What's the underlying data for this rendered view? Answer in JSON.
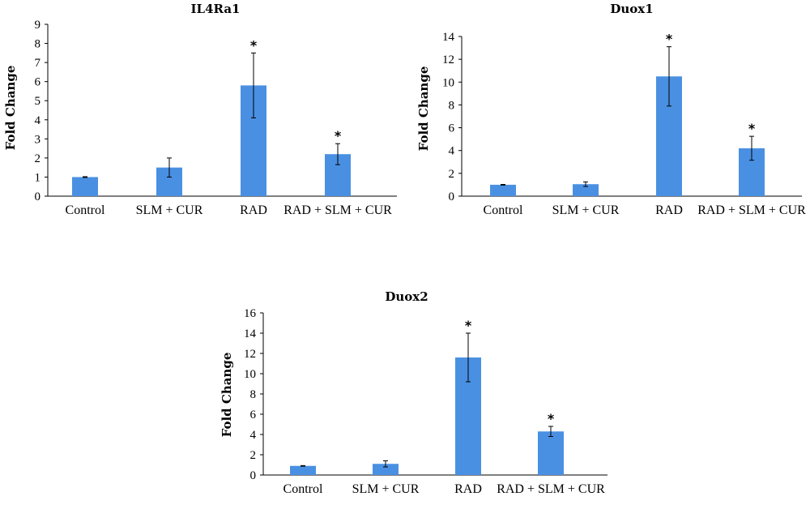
{
  "colors": {
    "bar": "#4a90e2",
    "axis": "#000000",
    "text": "#000000"
  },
  "chart_data": [
    {
      "type": "bar",
      "title": "IL4Ra1",
      "xlabel": "",
      "ylabel": "Fold Change",
      "ylim": [
        0,
        9
      ],
      "yticks": [
        0,
        1,
        2,
        3,
        4,
        5,
        6,
        7,
        8,
        9
      ],
      "grid": false,
      "categories": [
        "Control",
        "SLM + CUR",
        "RAD",
        "RAD + SLM + CUR"
      ],
      "values": [
        1.0,
        1.5,
        5.8,
        2.2
      ],
      "errors": [
        0.02,
        0.5,
        1.7,
        0.55
      ],
      "significance": [
        "",
        "",
        "*",
        "*"
      ]
    },
    {
      "type": "bar",
      "title": "Duox1",
      "xlabel": "",
      "ylabel": "Fold Change",
      "ylim": [
        0,
        14
      ],
      "yticks": [
        0,
        2,
        4,
        6,
        8,
        10,
        12,
        14
      ],
      "grid": false,
      "categories": [
        "Control",
        "SLM + CUR",
        "RAD",
        "RAD + SLM + CUR"
      ],
      "values": [
        1.0,
        1.05,
        10.5,
        4.2
      ],
      "errors": [
        0.03,
        0.2,
        2.6,
        1.05
      ],
      "significance": [
        "",
        "",
        "*",
        "*"
      ]
    },
    {
      "type": "bar",
      "title": "Duox2",
      "xlabel": "",
      "ylabel": "Fold Change",
      "ylim": [
        0,
        16
      ],
      "yticks": [
        0,
        2,
        4,
        6,
        8,
        10,
        12,
        14,
        16
      ],
      "grid": false,
      "categories": [
        "Control",
        "SLM + CUR",
        "RAD",
        "RAD + SLM + CUR"
      ],
      "values": [
        0.9,
        1.1,
        11.6,
        4.3
      ],
      "errors": [
        0.03,
        0.3,
        2.4,
        0.5
      ],
      "significance": [
        "",
        "",
        "*",
        "*"
      ]
    }
  ]
}
